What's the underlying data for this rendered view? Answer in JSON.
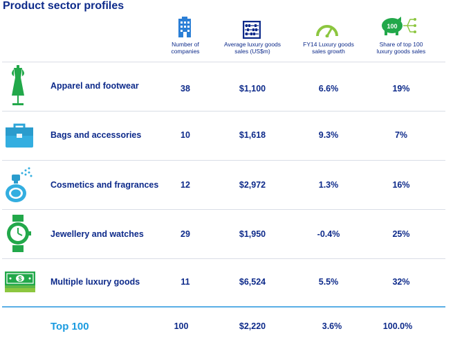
{
  "title": "Product sector profiles",
  "colors": {
    "navy": "#0d2a8a",
    "blue": "#2b7fd6",
    "green": "#22a84a",
    "lightgreen": "#8cc63f",
    "teal": "#2aa5a5",
    "total": "#1a9be0"
  },
  "columns": [
    {
      "icon": "building-icon",
      "label": "Number of\ncompanies"
    },
    {
      "icon": "abacus-icon",
      "label": "Average luxury goods\nsales (US$m)"
    },
    {
      "icon": "gauge-icon",
      "label": "FY14 Luxury goods\nsales growth"
    },
    {
      "icon": "piggy-bank-icon",
      "badge": "100",
      "label": "Share of top 100\nluxury goods sales"
    }
  ],
  "rows": [
    {
      "icon": "dress-mannequin-icon",
      "sector": "Apparel and footwear",
      "companies": "38",
      "avg_sales": "$1,100",
      "growth": "6.6%",
      "share": "19%"
    },
    {
      "icon": "briefcase-icon",
      "sector": "Bags and accessories",
      "companies": "10",
      "avg_sales": "$1,618",
      "growth": "9.3%",
      "share": "7%"
    },
    {
      "icon": "perfume-bottle-icon",
      "sector": "Cosmetics and fragrances",
      "companies": "12",
      "avg_sales": "$2,972",
      "growth": "1.3%",
      "share": "16%"
    },
    {
      "icon": "wristwatch-icon",
      "sector": "Jewellery and watches",
      "companies": "29",
      "avg_sales": "$1,950",
      "growth": "-0.4%",
      "share": "25%"
    },
    {
      "icon": "banknotes-icon",
      "sector": "Multiple luxury goods",
      "companies": "11",
      "avg_sales": "$6,524",
      "growth": "5.5%",
      "share": "32%"
    }
  ],
  "total": {
    "sector": "Top 100",
    "companies": "100",
    "avg_sales": "$2,220",
    "growth": "3.6%",
    "share": "100.0%"
  }
}
